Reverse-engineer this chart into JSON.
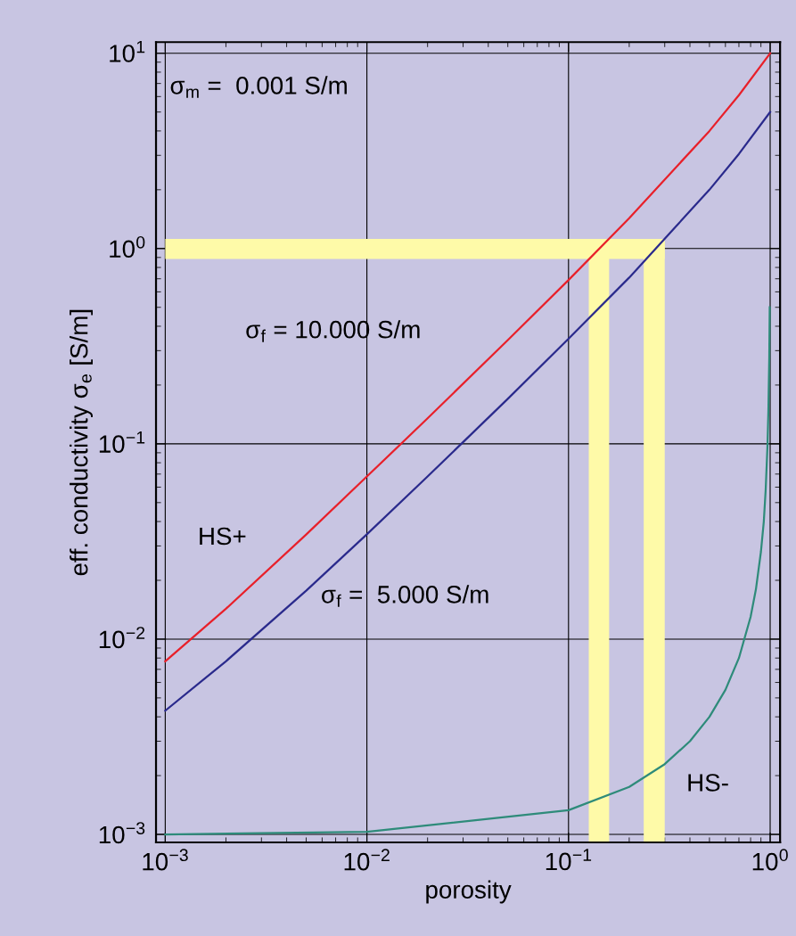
{
  "chart_data": {
    "type": "line",
    "xlabel": "porosity",
    "ylabel": "eff. conductivity σ$_{e}$ [S/m]",
    "log": "xy",
    "grid": true,
    "xlim": [
      0.0009,
      1.12
    ],
    "ylim": [
      0.00091,
      11.4
    ],
    "xticks": [
      {
        "value": 0.001,
        "label": "10$^{−3}$"
      },
      {
        "value": 0.01,
        "label": "10$^{−2}$"
      },
      {
        "value": 0.1,
        "label": "10$^{−1}$"
      },
      {
        "value": 1,
        "label": "10$^{0}$"
      }
    ],
    "yticks": [
      {
        "value": 0.001,
        "label": "10$^{−3}$"
      },
      {
        "value": 0.01,
        "label": "10$^{−2}$"
      },
      {
        "value": 0.1,
        "label": "10$^{−1}$"
      },
      {
        "value": 1,
        "label": "10$^{0}$"
      },
      {
        "value": 10,
        "label": "10$^{1}$"
      }
    ],
    "series": [
      {
        "color": "#e8202a",
        "x": [
          0.001,
          0.002,
          0.005,
          0.01,
          0.02,
          0.05,
          0.1,
          0.2,
          0.5,
          0.7,
          1
        ],
        "values": [
          0.0077,
          0.0143,
          0.0343,
          0.068,
          0.135,
          0.34,
          0.69,
          1.43,
          4.0,
          6.1,
          10
        ]
      },
      {
        "color": "#2a2a8c",
        "x": [
          0.001,
          0.002,
          0.005,
          0.01,
          0.02,
          0.05,
          0.1,
          0.2,
          0.5,
          0.7,
          1
        ],
        "values": [
          0.0043,
          0.0077,
          0.0177,
          0.0344,
          0.068,
          0.17,
          0.345,
          0.71,
          2.0,
          3.05,
          5
        ]
      },
      {
        "color": "#2e8b7a",
        "x": [
          0.001,
          0.01,
          0.1,
          0.2,
          0.3,
          0.4,
          0.5,
          0.6,
          0.7,
          0.8,
          0.85,
          0.9,
          0.93,
          0.95,
          0.97,
          0.98,
          0.99,
          0.995
        ],
        "values": [
          0.001,
          0.00103,
          0.00133,
          0.00175,
          0.00229,
          0.003,
          0.004,
          0.0055,
          0.008,
          0.013,
          0.018,
          0.028,
          0.04,
          0.058,
          0.098,
          0.148,
          0.28,
          0.5
        ]
      }
    ],
    "bands": [
      {
        "axis": "y",
        "from": 0.885,
        "to": 1.12,
        "color": "#fefaa8"
      },
      {
        "axis": "x",
        "from": 0.126,
        "to": 0.159,
        "color": "#fefaa8"
      },
      {
        "axis": "x",
        "from": 0.236,
        "to": 0.3,
        "color": "#fefaa8"
      }
    ],
    "annotations": [
      "σ$_{m}$ =  0.001 S/m",
      "σ$_{f}$ = 10.000 S/m",
      "HS+",
      "σ$_{f}$ =  5.000 S/m",
      "HS-"
    ]
  }
}
